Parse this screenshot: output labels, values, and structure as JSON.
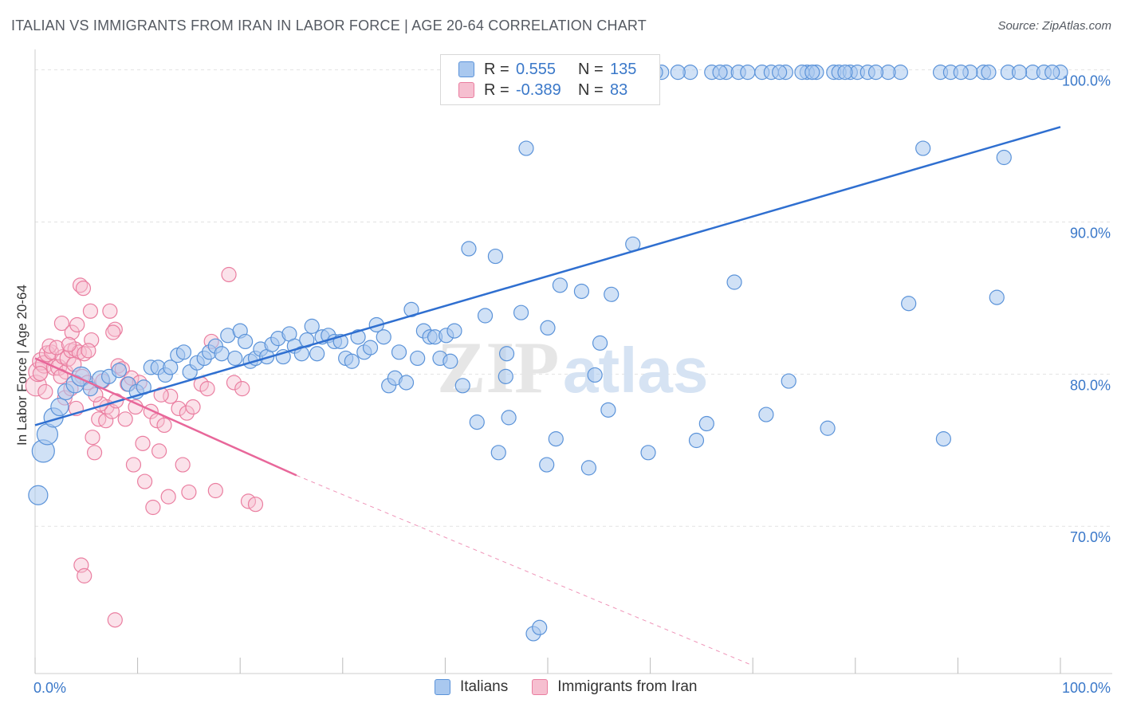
{
  "title": "ITALIAN VS IMMIGRANTS FROM IRAN IN LABOR FORCE | AGE 20-64 CORRELATION CHART",
  "source": "Source: ZipAtlas.com",
  "watermark": {
    "part1": "ZIP",
    "part2": "atlas"
  },
  "colors": {
    "blue_fill": "#a9c8ef",
    "blue_stroke": "#5b93d9",
    "blue_line": "#2f6fd0",
    "pink_fill": "#f6bfd0",
    "pink_stroke": "#ea7ea0",
    "pink_line": "#e8679a",
    "axis_text": "#3a78c9",
    "grid": "#e2e2e2"
  },
  "legend": {
    "rows": [
      {
        "r_label": "R =",
        "r_value": "0.555",
        "n_label": "N =",
        "n_value": "135"
      },
      {
        "r_label": "R =",
        "r_value": "-0.389",
        "n_label": "N =",
        "n_value": "83"
      }
    ]
  },
  "bottom_legend": {
    "italians": "Italians",
    "iran": "Immigrants from Iran"
  },
  "chart_data": {
    "type": "scatter",
    "ylabel": "In Labor Force | Age 20-64",
    "xlim": [
      0,
      100
    ],
    "ylim": [
      61,
      101.5
    ],
    "x_tick_labels": [
      "0.0%",
      "100.0%"
    ],
    "y_ticks": [
      70,
      80,
      90,
      100
    ],
    "y_tick_labels": [
      "70.0%",
      "80.0%",
      "90.0%",
      "100.0%"
    ],
    "grid": true,
    "series": [
      {
        "name": "Italians",
        "trend": {
          "x": [
            0,
            100
          ],
          "y": [
            76.8,
            96.4
          ]
        },
        "points": [
          [
            0.3,
            72.2,
            12
          ],
          [
            0.8,
            75.1,
            14
          ],
          [
            1.2,
            76.2,
            13
          ],
          [
            1.8,
            77.3,
            12
          ],
          [
            2.4,
            78.0,
            11
          ],
          [
            3.0,
            79.0,
            10
          ],
          [
            3.9,
            79.5,
            11
          ],
          [
            4.5,
            80.0,
            12
          ],
          [
            5.4,
            79.2,
            9
          ],
          [
            6.4,
            79.8,
            11
          ],
          [
            7.2,
            80.0,
            9
          ],
          [
            8.2,
            80.4,
            9
          ],
          [
            9.1,
            79.5,
            9
          ],
          [
            9.9,
            79.0,
            9
          ],
          [
            10.6,
            79.3,
            9
          ],
          [
            11.3,
            80.6,
            9
          ],
          [
            12.0,
            80.6,
            9
          ],
          [
            12.7,
            80.1,
            9
          ],
          [
            13.2,
            80.6,
            9
          ],
          [
            13.9,
            81.4,
            9
          ],
          [
            14.5,
            81.6,
            9
          ],
          [
            15.1,
            80.3,
            9
          ],
          [
            15.8,
            80.9,
            9
          ],
          [
            16.5,
            81.2,
            9
          ],
          [
            17.0,
            81.6,
            9
          ],
          [
            17.6,
            82.0,
            9
          ],
          [
            18.2,
            81.5,
            9
          ],
          [
            18.8,
            82.7,
            9
          ],
          [
            19.5,
            81.2,
            9
          ],
          [
            20.0,
            83.0,
            9
          ],
          [
            20.5,
            82.3,
            9
          ],
          [
            21.0,
            81.0,
            9
          ],
          [
            21.5,
            81.2,
            9
          ],
          [
            22.0,
            81.8,
            9
          ],
          [
            22.6,
            81.3,
            9
          ],
          [
            23.1,
            82.1,
            9
          ],
          [
            23.7,
            82.5,
            9
          ],
          [
            24.2,
            81.3,
            9
          ],
          [
            24.8,
            82.8,
            9
          ],
          [
            25.3,
            82.0,
            9
          ],
          [
            26.0,
            81.5,
            9
          ],
          [
            26.5,
            82.4,
            9
          ],
          [
            27.0,
            83.3,
            9
          ],
          [
            27.5,
            81.5,
            9
          ],
          [
            28.0,
            82.6,
            9
          ],
          [
            28.6,
            82.7,
            9
          ],
          [
            29.2,
            82.3,
            9
          ],
          [
            29.8,
            82.3,
            9
          ],
          [
            30.3,
            81.2,
            9
          ],
          [
            30.9,
            81.0,
            9
          ],
          [
            31.5,
            82.6,
            9
          ],
          [
            32.1,
            81.6,
            9
          ],
          [
            32.7,
            81.9,
            9
          ],
          [
            33.3,
            83.4,
            9
          ],
          [
            34.0,
            82.6,
            9
          ],
          [
            34.5,
            79.4,
            9
          ],
          [
            35.1,
            79.9,
            9
          ],
          [
            35.5,
            81.6,
            9
          ],
          [
            36.2,
            79.6,
            9
          ],
          [
            36.7,
            84.4,
            9
          ],
          [
            37.3,
            81.2,
            9
          ],
          [
            37.9,
            83.0,
            9
          ],
          [
            38.5,
            82.6,
            9
          ],
          [
            39.0,
            82.6,
            9
          ],
          [
            39.5,
            81.2,
            9
          ],
          [
            40.1,
            82.7,
            9
          ],
          [
            40.5,
            81.0,
            9
          ],
          [
            40.9,
            83.0,
            9
          ],
          [
            41.7,
            79.4,
            9
          ],
          [
            42.3,
            88.4,
            9
          ],
          [
            43.1,
            77.0,
            9
          ],
          [
            43.9,
            84.0,
            9
          ],
          [
            44.9,
            87.9,
            9
          ],
          [
            45.2,
            75.0,
            9
          ],
          [
            45.9,
            80.0,
            9
          ],
          [
            46.0,
            81.5,
            9
          ],
          [
            46.2,
            77.3,
            9
          ],
          [
            47.4,
            84.2,
            9
          ],
          [
            47.9,
            95.0,
            9
          ],
          [
            48.6,
            63.1,
            9
          ],
          [
            49.2,
            63.5,
            9
          ],
          [
            49.9,
            74.2,
            9
          ],
          [
            50.0,
            83.2,
            9
          ],
          [
            50.8,
            75.9,
            9
          ],
          [
            51.2,
            86.0,
            9
          ],
          [
            53.3,
            85.6,
            9
          ],
          [
            54.0,
            74.0,
            9
          ],
          [
            54.6,
            80.1,
            9
          ],
          [
            55.1,
            82.2,
            9
          ],
          [
            55.9,
            77.8,
            9
          ],
          [
            56.2,
            85.4,
            9
          ],
          [
            57.4,
            100.0,
            9
          ],
          [
            58.3,
            88.7,
            9
          ],
          [
            59.1,
            100.0,
            9
          ],
          [
            59.8,
            75.0,
            9
          ],
          [
            61.1,
            100.0,
            9
          ],
          [
            63.9,
            100.0,
            9
          ],
          [
            65.5,
            76.9,
            9
          ],
          [
            67.4,
            100.0,
            9
          ],
          [
            68.2,
            86.2,
            9
          ],
          [
            68.6,
            100.0,
            9
          ],
          [
            70.9,
            100.0,
            9
          ],
          [
            71.3,
            77.5,
            9
          ],
          [
            73.2,
            100.0,
            9
          ],
          [
            73.5,
            79.7,
            9
          ],
          [
            75.3,
            100.0,
            9
          ],
          [
            77.3,
            76.6,
            9
          ],
          [
            77.9,
            100.0,
            9
          ],
          [
            78.4,
            100.0,
            9
          ],
          [
            79.5,
            100.0,
            9
          ],
          [
            80.2,
            100.0,
            9
          ],
          [
            81.2,
            100.0,
            9
          ],
          [
            84.4,
            100.0,
            9
          ],
          [
            85.2,
            84.8,
            9
          ],
          [
            86.6,
            95.0,
            9
          ],
          [
            88.3,
            100.0,
            9
          ],
          [
            89.3,
            100.0,
            9
          ],
          [
            92.5,
            100.0,
            9
          ],
          [
            93.8,
            85.2,
            9
          ],
          [
            94.9,
            100.0,
            9
          ],
          [
            97.3,
            100.0,
            9
          ],
          [
            100.0,
            100.0,
            9
          ],
          [
            60.5,
            100.0,
            9
          ],
          [
            58.0,
            100.0,
            9
          ],
          [
            64.5,
            75.8,
            9
          ],
          [
            66.0,
            100.0,
            9
          ],
          [
            69.5,
            100.0,
            9
          ],
          [
            71.8,
            100.0,
            9
          ],
          [
            74.8,
            100.0,
            9
          ],
          [
            76.2,
            100.0,
            9
          ],
          [
            79.0,
            100.0,
            9
          ],
          [
            83.2,
            100.0,
            9
          ],
          [
            91.2,
            100.0,
            9
          ],
          [
            88.6,
            75.9,
            9
          ],
          [
            94.5,
            94.4,
            9
          ],
          [
            96.0,
            100.0,
            9
          ],
          [
            98.4,
            100.0,
            9
          ],
          [
            99.2,
            100.0,
            9
          ],
          [
            62.7,
            100.0,
            9
          ],
          [
            66.8,
            100.0,
            9
          ],
          [
            72.6,
            100.0,
            9
          ],
          [
            75.8,
            100.0,
            9
          ],
          [
            82.0,
            100.0,
            9
          ],
          [
            90.3,
            100.0,
            9
          ],
          [
            93.0,
            100.0,
            9
          ]
        ]
      },
      {
        "name": "Immigrants from Iran",
        "trend": {
          "x": [
            0,
            25.5
          ],
          "y": [
            81.2,
            73.5
          ]
        },
        "trend_dashed": {
          "x": [
            25.5,
            70
          ],
          "y": [
            73.5,
            61.0
          ]
        },
        "points": [
          [
            0.1,
            79.4,
            13
          ],
          [
            0.3,
            80.3,
            12
          ],
          [
            0.6,
            81.0,
            11
          ],
          [
            0.9,
            80.8,
            11
          ],
          [
            1.2,
            81.5,
            10
          ],
          [
            1.6,
            81.6,
            9
          ],
          [
            1.9,
            80.6,
            10
          ],
          [
            2.3,
            80.6,
            10
          ],
          [
            2.7,
            81.3,
            9
          ],
          [
            3.0,
            80.3,
            9
          ],
          [
            3.2,
            81.2,
            10
          ],
          [
            3.5,
            81.7,
            9
          ],
          [
            3.9,
            81.8,
            9
          ],
          [
            4.3,
            81.6,
            9
          ],
          [
            4.8,
            81.5,
            9
          ],
          [
            2.6,
            83.5,
            9
          ],
          [
            3.6,
            82.9,
            9
          ],
          [
            4.1,
            83.4,
            9
          ],
          [
            4.4,
            86.0,
            9
          ],
          [
            4.7,
            85.8,
            9
          ],
          [
            5.4,
            84.3,
            9
          ],
          [
            5.5,
            82.4,
            9
          ],
          [
            5.2,
            81.7,
            9
          ],
          [
            7.3,
            84.3,
            9
          ],
          [
            7.8,
            83.1,
            9
          ],
          [
            7.6,
            82.9,
            9
          ],
          [
            8.1,
            80.7,
            9
          ],
          [
            8.5,
            80.5,
            9
          ],
          [
            9.0,
            79.5,
            9
          ],
          [
            9.4,
            79.9,
            9
          ],
          [
            2.9,
            78.6,
            9
          ],
          [
            3.5,
            79.2,
            9
          ],
          [
            4.0,
            77.9,
            9
          ],
          [
            4.6,
            80.0,
            9
          ],
          [
            5.1,
            79.6,
            9
          ],
          [
            5.6,
            76.0,
            9
          ],
          [
            6.2,
            77.2,
            9
          ],
          [
            6.9,
            77.1,
            9
          ],
          [
            7.0,
            78.0,
            9
          ],
          [
            7.5,
            77.7,
            9
          ],
          [
            9.8,
            78.0,
            9
          ],
          [
            10.2,
            79.6,
            9
          ],
          [
            11.3,
            77.7,
            9
          ],
          [
            11.9,
            77.1,
            9
          ],
          [
            12.6,
            76.8,
            9
          ],
          [
            13.2,
            78.7,
            9
          ],
          [
            14.0,
            77.9,
            9
          ],
          [
            14.8,
            77.6,
            9
          ],
          [
            15.4,
            78.0,
            9
          ],
          [
            16.2,
            79.5,
            9
          ],
          [
            16.8,
            79.2,
            9
          ],
          [
            18.9,
            86.7,
            9
          ],
          [
            17.2,
            82.3,
            9
          ],
          [
            9.6,
            74.2,
            9
          ],
          [
            10.7,
            73.1,
            9
          ],
          [
            11.5,
            71.4,
            9
          ],
          [
            12.1,
            75.1,
            9
          ],
          [
            13.0,
            72.1,
            9
          ],
          [
            14.4,
            74.2,
            9
          ],
          [
            15.0,
            72.4,
            9
          ],
          [
            17.6,
            72.5,
            9
          ],
          [
            20.8,
            71.8,
            9
          ],
          [
            21.5,
            71.6,
            9
          ],
          [
            4.5,
            67.6,
            9
          ],
          [
            4.8,
            66.9,
            9
          ],
          [
            7.8,
            64.0,
            9
          ],
          [
            5.8,
            75.0,
            9
          ],
          [
            6.4,
            78.2,
            9
          ],
          [
            0.5,
            80.2,
            9
          ],
          [
            1.0,
            79.0,
            9
          ],
          [
            1.4,
            82.0,
            9
          ],
          [
            2.1,
            81.9,
            9
          ],
          [
            2.5,
            80.0,
            9
          ],
          [
            3.3,
            82.1,
            9
          ],
          [
            3.8,
            80.8,
            9
          ],
          [
            5.9,
            78.8,
            9
          ],
          [
            6.6,
            79.7,
            9
          ],
          [
            7.9,
            78.4,
            9
          ],
          [
            8.8,
            77.2,
            9
          ],
          [
            10.5,
            75.6,
            9
          ],
          [
            12.3,
            78.8,
            9
          ],
          [
            19.4,
            79.6,
            9
          ],
          [
            20.2,
            79.2,
            9
          ]
        ]
      }
    ]
  }
}
